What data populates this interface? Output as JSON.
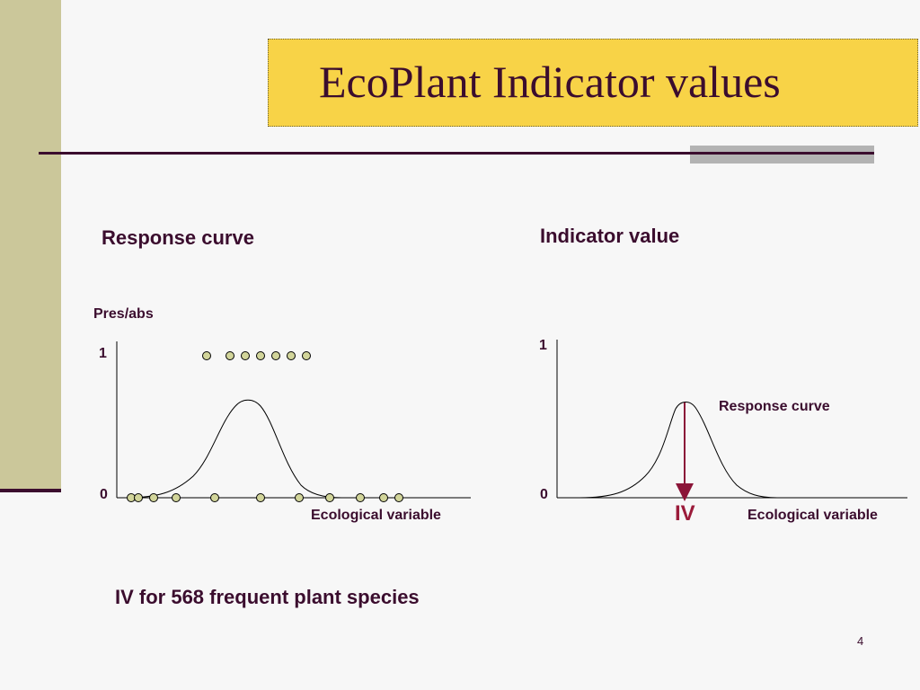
{
  "slide": {
    "title": "EcoPlant Indicator values",
    "page_number": "4",
    "bottom_note": "IV for 568 frequent plant species"
  },
  "left_panel": {
    "heading": "Response curve",
    "y_label": "Pres/abs",
    "y_tick_top": "1",
    "y_tick_bottom": "0",
    "x_label": "Ecological variable",
    "presence_points_count": 7,
    "absence_points_count": 12
  },
  "right_panel": {
    "heading": "Indicator value",
    "y_tick_top": "1",
    "y_tick_bottom": "0",
    "curve_label": "Response curve",
    "iv_label": "IV",
    "x_label": "Ecological variable"
  },
  "colors": {
    "accent": "#f8d347",
    "side_band": "#cbc79a",
    "text": "#3b0d2e",
    "point_fill": "#d2d59a",
    "arrow": "#8b1538"
  }
}
